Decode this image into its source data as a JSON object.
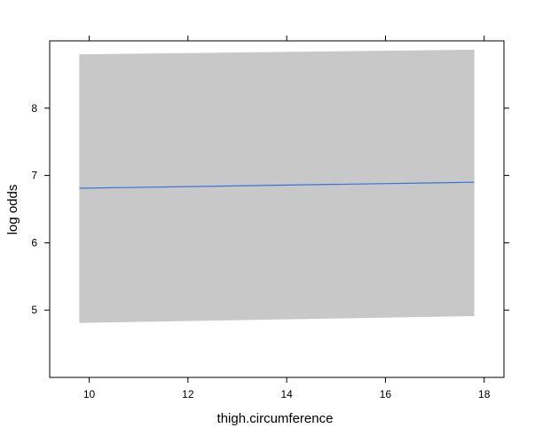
{
  "chart_data": {
    "type": "line",
    "xlabel": "thigh.circumference",
    "ylabel": "log odds",
    "xlim": [
      9.2,
      18.4
    ],
    "ylim": [
      4.0,
      9.0
    ],
    "x_ticks": [
      10,
      12,
      14,
      16,
      18
    ],
    "y_ticks": [
      5,
      6,
      7,
      8
    ],
    "grid": false,
    "series": [
      {
        "x": [
          9.8,
          17.8
        ],
        "y": [
          6.81,
          6.9
        ],
        "color": "#3a6fe0"
      }
    ],
    "confidence_band": {
      "x": [
        9.8,
        17.8
      ],
      "lower": [
        4.81,
        4.91
      ],
      "upper": [
        8.8,
        8.87
      ],
      "color": "#c8c8c8"
    }
  }
}
